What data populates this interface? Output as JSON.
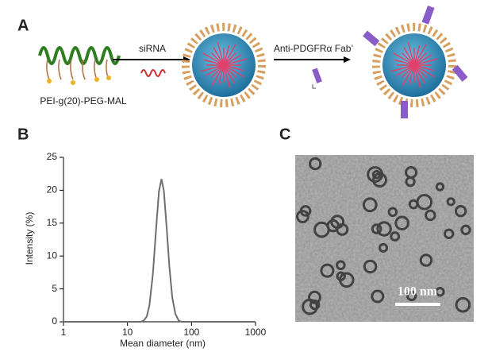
{
  "panel_a": {
    "label": "A",
    "precursor": "PEI-g(20)-PEG-MAL",
    "step1": "siRNA",
    "step2": "Anti-PDGFRα Fab’"
  },
  "chart_data": {
    "type": "line",
    "panel_label": "B",
    "xlabel": "Mean diameter (nm)",
    "ylabel": "Intensity (%)",
    "xscale": "log",
    "xlim": [
      1,
      1000
    ],
    "xticks": [
      1,
      10,
      100,
      1000
    ],
    "ylim": [
      0,
      25
    ],
    "yticks": [
      0,
      5,
      10,
      15,
      20,
      25
    ],
    "x": [
      1,
      16,
      18,
      20,
      22,
      25,
      28,
      31,
      34,
      37,
      41,
      45,
      50,
      56,
      63,
      70,
      80,
      1000
    ],
    "values": [
      0,
      0,
      0.2,
      0.8,
      2.5,
      7.4,
      14.2,
      19.8,
      21.7,
      19.9,
      14.2,
      8.5,
      3.7,
      1.2,
      0.2,
      0,
      0,
      0
    ],
    "color": "#6e6e6e"
  },
  "panel_c": {
    "label": "C",
    "scale_bar": "100 nm"
  }
}
